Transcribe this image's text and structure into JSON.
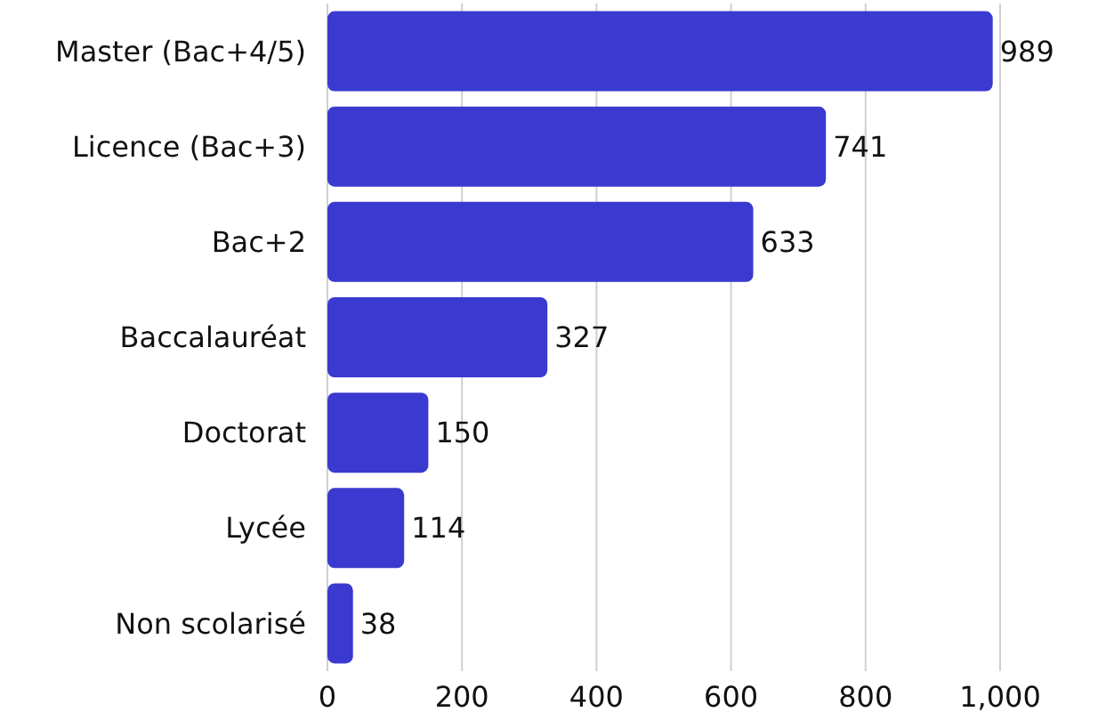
{
  "chart_data": {
    "type": "bar",
    "orientation": "horizontal",
    "categories": [
      "Master (Bac+4/5)",
      "Licence (Bac+3)",
      "Bac+2",
      "Baccalauréat",
      "Doctorat",
      "Lycée",
      "Non scolarisé"
    ],
    "values": [
      989,
      741,
      633,
      327,
      150,
      114,
      38
    ],
    "color": "#3a3ad0",
    "xlim": [
      0,
      1000
    ],
    "xticks": [
      0,
      200,
      400,
      600,
      800,
      {
        "value": 1000,
        "label": "1,000"
      }
    ],
    "grid": "x",
    "data_labels": true
  }
}
